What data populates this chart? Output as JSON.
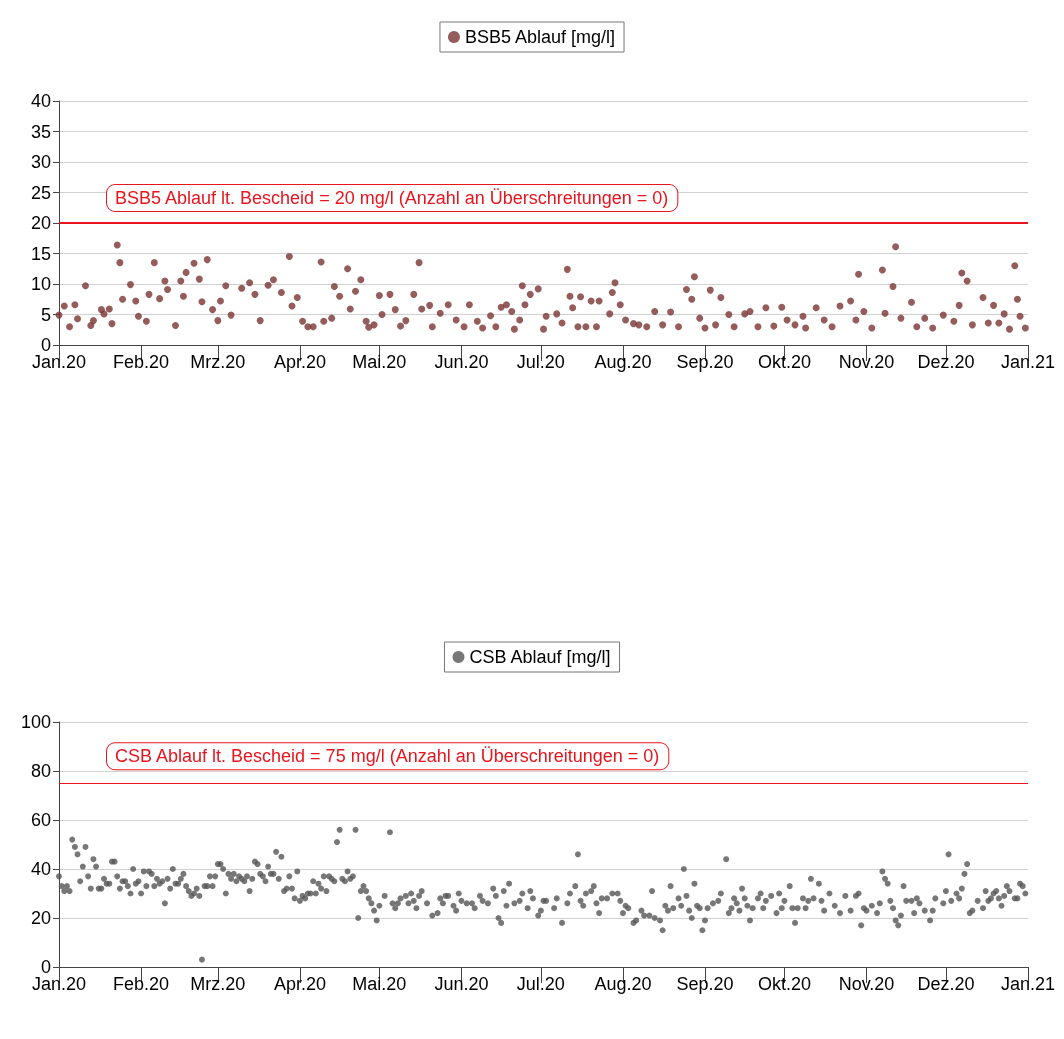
{
  "chart_data": [
    {
      "type": "scatter",
      "legend": "top",
      "grid": "y",
      "marker": "circle",
      "xlim": [
        "2020-01-01",
        "2021-01-01"
      ],
      "xticks": [
        {
          "value": "2020-01-01",
          "label": "Jan.20"
        },
        {
          "value": "2020-02-01",
          "label": "Feb.20"
        },
        {
          "value": "2020-03-01",
          "label": "Mrz.20"
        },
        {
          "value": "2020-04-01",
          "label": "Apr.20"
        },
        {
          "value": "2020-05-01",
          "label": "Mai.20"
        },
        {
          "value": "2020-06-01",
          "label": "Jun.20"
        },
        {
          "value": "2020-07-01",
          "label": "Jul.20"
        },
        {
          "value": "2020-08-01",
          "label": "Aug.20"
        },
        {
          "value": "2020-09-01",
          "label": "Sep.20"
        },
        {
          "value": "2020-10-01",
          "label": "Okt.20"
        },
        {
          "value": "2020-11-01",
          "label": "Nov.20"
        },
        {
          "value": "2020-12-01",
          "label": "Dez.20"
        },
        {
          "value": "2021-01-01",
          "label": "Jan.21"
        }
      ],
      "ylim": [
        0,
        40
      ],
      "yticks": [
        0,
        5,
        10,
        15,
        20,
        25,
        30,
        35,
        40
      ],
      "ref_lines": [
        {
          "axis": "y",
          "value": 20,
          "label": "BSB5 Ablauf lt. Bescheid = 20 mg/l (Anzahl an Überschreitungen = 0)",
          "color": "#e8141e"
        }
      ],
      "series": [
        {
          "name": "BSB5 Ablauf [mg/l]",
          "color": "#7a3333",
          "x": [
            "2020-01-01",
            "2020-01-03",
            "2020-01-05",
            "2020-01-07",
            "2020-01-08",
            "2020-01-11",
            "2020-01-13",
            "2020-01-14",
            "2020-01-17",
            "2020-01-18",
            "2020-01-20",
            "2020-01-21",
            "2020-01-23",
            "2020-01-24",
            "2020-01-25",
            "2020-01-28",
            "2020-01-30",
            "2020-01-31",
            "2020-02-03",
            "2020-02-04",
            "2020-02-06",
            "2020-02-08",
            "2020-02-10",
            "2020-02-11",
            "2020-02-14",
            "2020-02-16",
            "2020-02-17",
            "2020-02-18",
            "2020-02-21",
            "2020-02-23",
            "2020-02-24",
            "2020-02-26",
            "2020-02-28",
            "2020-03-01",
            "2020-03-02",
            "2020-03-04",
            "2020-03-06",
            "2020-03-10",
            "2020-03-13",
            "2020-03-15",
            "2020-03-17",
            "2020-03-20",
            "2020-03-22",
            "2020-03-25",
            "2020-03-28",
            "2020-03-29",
            "2020-03-31",
            "2020-04-02",
            "2020-04-04",
            "2020-04-06",
            "2020-04-09",
            "2020-04-10",
            "2020-04-13",
            "2020-04-14",
            "2020-04-16",
            "2020-04-19",
            "2020-04-20",
            "2020-04-22",
            "2020-04-24",
            "2020-04-26",
            "2020-04-27",
            "2020-04-29",
            "2020-05-01",
            "2020-05-02",
            "2020-05-05",
            "2020-05-07",
            "2020-05-09",
            "2020-05-11",
            "2020-05-14",
            "2020-05-16",
            "2020-05-17",
            "2020-05-20",
            "2020-05-21",
            "2020-05-24",
            "2020-05-27",
            "2020-05-30",
            "2020-06-02",
            "2020-06-04",
            "2020-06-07",
            "2020-06-09",
            "2020-06-12",
            "2020-06-14",
            "2020-06-16",
            "2020-06-18",
            "2020-06-20",
            "2020-06-21",
            "2020-06-23",
            "2020-06-24",
            "2020-06-25",
            "2020-06-27",
            "2020-06-30",
            "2020-07-02",
            "2020-07-03",
            "2020-07-07",
            "2020-07-09",
            "2020-07-11",
            "2020-07-12",
            "2020-07-13",
            "2020-07-15",
            "2020-07-16",
            "2020-07-18",
            "2020-07-20",
            "2020-07-22",
            "2020-07-23",
            "2020-07-27",
            "2020-07-28",
            "2020-07-29",
            "2020-07-31",
            "2020-08-02",
            "2020-08-05",
            "2020-08-07",
            "2020-08-10",
            "2020-08-13",
            "2020-08-16",
            "2020-08-19",
            "2020-08-22",
            "2020-08-25",
            "2020-08-27",
            "2020-08-28",
            "2020-08-30",
            "2020-09-01",
            "2020-09-03",
            "2020-09-05",
            "2020-09-07",
            "2020-09-10",
            "2020-09-12",
            "2020-09-16",
            "2020-09-18",
            "2020-09-21",
            "2020-09-24",
            "2020-09-27",
            "2020-09-30",
            "2020-10-02",
            "2020-10-05",
            "2020-10-08",
            "2020-10-09",
            "2020-10-13",
            "2020-10-16",
            "2020-10-19",
            "2020-10-22",
            "2020-10-26",
            "2020-10-28",
            "2020-10-29",
            "2020-10-31",
            "2020-11-03",
            "2020-11-07",
            "2020-11-08",
            "2020-11-11",
            "2020-11-12",
            "2020-11-14",
            "2020-11-18",
            "2020-11-20",
            "2020-11-23",
            "2020-11-26",
            "2020-11-30",
            "2020-12-04",
            "2020-12-06",
            "2020-12-07",
            "2020-12-09",
            "2020-12-11",
            "2020-12-15",
            "2020-12-17",
            "2020-12-19",
            "2020-12-21",
            "2020-12-23",
            "2020-12-25",
            "2020-12-27",
            "2020-12-28",
            "2020-12-29",
            "2020-12-31"
          ],
          "values": [
            4.9,
            6.4,
            3.0,
            6.6,
            4.3,
            9.7,
            3.2,
            4.0,
            5.8,
            5.1,
            5.9,
            3.5,
            16.4,
            13.5,
            7.5,
            9.9,
            7.2,
            4.7,
            3.9,
            8.3,
            13.5,
            7.6,
            10.5,
            9.1,
            3.2,
            10.5,
            8.0,
            11.9,
            13.4,
            10.8,
            7.1,
            14.0,
            5.8,
            4.0,
            7.2,
            9.7,
            4.9,
            9.3,
            10.2,
            8.3,
            4.0,
            9.8,
            10.7,
            8.6,
            14.5,
            6.4,
            7.8,
            3.9,
            3.0,
            3.0,
            13.6,
            3.9,
            4.4,
            9.6,
            8.0,
            12.5,
            5.9,
            8.8,
            10.7,
            3.9,
            2.9,
            3.3,
            8.1,
            5.0,
            8.3,
            5.8,
            3.1,
            4.0,
            8.3,
            13.5,
            5.9,
            6.5,
            3.0,
            5.2,
            6.6,
            4.1,
            3.0,
            6.6,
            3.9,
            2.8,
            4.8,
            3.0,
            6.2,
            6.6,
            5.5,
            2.6,
            4.1,
            9.7,
            6.6,
            8.3,
            9.2,
            2.6,
            4.7,
            5.1,
            3.6,
            12.4,
            8.0,
            6.1,
            3.0,
            7.9,
            3.0,
            7.2,
            3.0,
            7.2,
            5.1,
            8.6,
            10.2,
            6.6,
            4.1,
            3.5,
            3.3,
            3.0,
            5.5,
            3.3,
            5.4,
            3.0,
            9.1,
            7.5,
            11.2,
            4.4,
            2.8,
            9.0,
            3.3,
            7.8,
            5.0,
            3.0,
            5.1,
            5.5,
            3.0,
            6.1,
            3.1,
            6.2,
            4.1,
            3.3,
            4.7,
            2.8,
            6.1,
            4.1,
            3.0,
            6.4,
            7.2,
            4.1,
            11.6,
            5.5,
            2.8,
            12.3,
            5.2,
            9.6,
            16.1,
            4.4,
            7.0,
            3.0,
            4.4,
            2.8,
            4.9,
            3.9,
            6.5,
            11.8,
            10.5,
            3.3,
            7.8,
            3.6,
            6.5,
            3.6,
            5.1,
            2.6,
            13.0,
            7.5,
            4.7,
            2.8
          ]
        }
      ]
    },
    {
      "type": "scatter",
      "legend": "top",
      "grid": "y",
      "marker": "circle",
      "xlim": [
        "2020-01-01",
        "2021-01-01"
      ],
      "xticks": [
        {
          "value": "2020-01-01",
          "label": "Jan.20"
        },
        {
          "value": "2020-02-01",
          "label": "Feb.20"
        },
        {
          "value": "2020-03-01",
          "label": "Mrz.20"
        },
        {
          "value": "2020-04-01",
          "label": "Apr.20"
        },
        {
          "value": "2020-05-01",
          "label": "Mai.20"
        },
        {
          "value": "2020-06-01",
          "label": "Jun.20"
        },
        {
          "value": "2020-07-01",
          "label": "Jul.20"
        },
        {
          "value": "2020-08-01",
          "label": "Aug.20"
        },
        {
          "value": "2020-09-01",
          "label": "Sep.20"
        },
        {
          "value": "2020-10-01",
          "label": "Okt.20"
        },
        {
          "value": "2020-11-01",
          "label": "Nov.20"
        },
        {
          "value": "2020-12-01",
          "label": "Dez.20"
        },
        {
          "value": "2021-01-01",
          "label": "Jan.21"
        }
      ],
      "ylim": [
        0,
        100
      ],
      "yticks": [
        0,
        20,
        40,
        60,
        80,
        100
      ],
      "ref_lines": [
        {
          "axis": "y",
          "value": 75,
          "label": "CSB Ablauf lt. Bescheid = 75 mg/l (Anzahl an Überschreitungen = 0)",
          "color": "#e8141e"
        }
      ],
      "series": [
        {
          "name": "CSB Ablauf [mg/l]",
          "color": "#555555",
          "x": [
            "2020-01-01",
            "2020-01-02",
            "2020-01-03",
            "2020-01-04",
            "2020-01-05",
            "2020-01-06",
            "2020-01-07",
            "2020-01-08",
            "2020-01-09",
            "2020-01-10",
            "2020-01-11",
            "2020-01-12",
            "2020-01-13",
            "2020-01-14",
            "2020-01-15",
            "2020-01-16",
            "2020-01-17",
            "2020-01-18",
            "2020-01-19",
            "2020-01-20",
            "2020-01-21",
            "2020-01-22",
            "2020-01-23",
            "2020-01-24",
            "2020-01-25",
            "2020-01-26",
            "2020-01-27",
            "2020-01-28",
            "2020-01-29",
            "2020-01-30",
            "2020-01-31",
            "2020-02-01",
            "2020-02-02",
            "2020-02-03",
            "2020-02-04",
            "2020-02-05",
            "2020-02-06",
            "2020-02-07",
            "2020-02-08",
            "2020-02-09",
            "2020-02-10",
            "2020-02-11",
            "2020-02-12",
            "2020-02-13",
            "2020-02-14",
            "2020-02-15",
            "2020-02-16",
            "2020-02-17",
            "2020-02-18",
            "2020-02-19",
            "2020-02-20",
            "2020-02-21",
            "2020-02-22",
            "2020-02-23",
            "2020-02-24",
            "2020-02-25",
            "2020-02-26",
            "2020-02-27",
            "2020-02-28",
            "2020-02-29",
            "2020-03-01",
            "2020-03-02",
            "2020-03-03",
            "2020-03-04",
            "2020-03-05",
            "2020-03-06",
            "2020-03-07",
            "2020-03-08",
            "2020-03-09",
            "2020-03-10",
            "2020-03-11",
            "2020-03-12",
            "2020-03-13",
            "2020-03-14",
            "2020-03-15",
            "2020-03-16",
            "2020-03-17",
            "2020-03-18",
            "2020-03-19",
            "2020-03-20",
            "2020-03-21",
            "2020-03-22",
            "2020-03-23",
            "2020-03-24",
            "2020-03-25",
            "2020-03-26",
            "2020-03-27",
            "2020-03-28",
            "2020-03-29",
            "2020-03-30",
            "2020-03-31",
            "2020-04-01",
            "2020-04-02",
            "2020-04-03",
            "2020-04-04",
            "2020-04-05",
            "2020-04-06",
            "2020-04-07",
            "2020-04-08",
            "2020-04-09",
            "2020-04-10",
            "2020-04-11",
            "2020-04-12",
            "2020-04-13",
            "2020-04-14",
            "2020-04-15",
            "2020-04-16",
            "2020-04-17",
            "2020-04-18",
            "2020-04-19",
            "2020-04-20",
            "2020-04-21",
            "2020-04-22",
            "2020-04-23",
            "2020-04-24",
            "2020-04-25",
            "2020-04-26",
            "2020-04-27",
            "2020-04-28",
            "2020-04-29",
            "2020-04-30",
            "2020-05-01",
            "2020-05-03",
            "2020-05-05",
            "2020-05-06",
            "2020-05-07",
            "2020-05-08",
            "2020-05-09",
            "2020-05-11",
            "2020-05-12",
            "2020-05-13",
            "2020-05-14",
            "2020-05-15",
            "2020-05-16",
            "2020-05-17",
            "2020-05-19",
            "2020-05-21",
            "2020-05-23",
            "2020-05-24",
            "2020-05-25",
            "2020-05-26",
            "2020-05-27",
            "2020-05-29",
            "2020-05-30",
            "2020-05-31",
            "2020-06-01",
            "2020-06-03",
            "2020-06-05",
            "2020-06-06",
            "2020-06-08",
            "2020-06-09",
            "2020-06-11",
            "2020-06-13",
            "2020-06-14",
            "2020-06-15",
            "2020-06-16",
            "2020-06-17",
            "2020-06-18",
            "2020-06-19",
            "2020-06-21",
            "2020-06-23",
            "2020-06-24",
            "2020-06-26",
            "2020-06-27",
            "2020-06-28",
            "2020-06-30",
            "2020-07-01",
            "2020-07-02",
            "2020-07-03",
            "2020-07-06",
            "2020-07-07",
            "2020-07-09",
            "2020-07-11",
            "2020-07-12",
            "2020-07-14",
            "2020-07-15",
            "2020-07-16",
            "2020-07-17",
            "2020-07-18",
            "2020-07-20",
            "2020-07-21",
            "2020-07-22",
            "2020-07-23",
            "2020-07-24",
            "2020-07-26",
            "2020-07-28",
            "2020-07-30",
            "2020-07-31",
            "2020-08-01",
            "2020-08-02",
            "2020-08-03",
            "2020-08-05",
            "2020-08-06",
            "2020-08-08",
            "2020-08-09",
            "2020-08-11",
            "2020-08-12",
            "2020-08-13",
            "2020-08-15",
            "2020-08-16",
            "2020-08-17",
            "2020-08-18",
            "2020-08-19",
            "2020-08-20",
            "2020-08-22",
            "2020-08-23",
            "2020-08-24",
            "2020-08-25",
            "2020-08-26",
            "2020-08-27",
            "2020-08-28",
            "2020-08-29",
            "2020-08-30",
            "2020-08-31",
            "2020-09-01",
            "2020-09-02",
            "2020-09-04",
            "2020-09-06",
            "2020-09-07",
            "2020-09-09",
            "2020-09-10",
            "2020-09-11",
            "2020-09-12",
            "2020-09-13",
            "2020-09-14",
            "2020-09-15",
            "2020-09-16",
            "2020-09-17",
            "2020-09-18",
            "2020-09-19",
            "2020-09-21",
            "2020-09-22",
            "2020-09-23",
            "2020-09-24",
            "2020-09-26",
            "2020-09-28",
            "2020-09-29",
            "2020-09-30",
            "2020-10-01",
            "2020-10-03",
            "2020-10-04",
            "2020-10-05",
            "2020-10-06",
            "2020-10-08",
            "2020-10-09",
            "2020-10-10",
            "2020-10-11",
            "2020-10-12",
            "2020-10-14",
            "2020-10-15",
            "2020-10-16",
            "2020-10-18",
            "2020-10-20",
            "2020-10-22",
            "2020-10-24",
            "2020-10-26",
            "2020-10-28",
            "2020-10-29",
            "2020-10-30",
            "2020-10-31",
            "2020-11-01",
            "2020-11-03",
            "2020-11-05",
            "2020-11-06",
            "2020-11-07",
            "2020-11-08",
            "2020-11-09",
            "2020-11-10",
            "2020-11-11",
            "2020-11-12",
            "2020-11-13",
            "2020-11-14",
            "2020-11-15",
            "2020-11-16",
            "2020-11-18",
            "2020-11-19",
            "2020-11-20",
            "2020-11-21",
            "2020-11-23",
            "2020-11-25",
            "2020-11-26",
            "2020-11-27",
            "2020-11-30",
            "2020-12-01",
            "2020-12-02",
            "2020-12-03",
            "2020-12-05",
            "2020-12-06",
            "2020-12-07",
            "2020-12-08",
            "2020-12-09",
            "2020-12-10",
            "2020-12-11",
            "2020-12-13",
            "2020-12-15",
            "2020-12-16",
            "2020-12-17",
            "2020-12-18",
            "2020-12-19",
            "2020-12-20",
            "2020-12-21",
            "2020-12-22",
            "2020-12-23",
            "2020-12-24",
            "2020-12-25",
            "2020-12-27",
            "2020-12-28",
            "2020-12-29",
            "2020-12-30",
            "2020-12-31"
          ],
          "values": [
            37,
            33,
            31,
            33,
            31,
            52,
            49,
            46,
            35,
            41,
            49,
            37,
            32,
            44,
            41,
            32,
            32,
            36,
            34,
            34,
            43,
            43,
            37,
            32,
            35,
            35,
            33,
            30,
            40,
            34,
            35,
            30,
            39,
            33,
            39,
            38,
            33,
            36,
            34,
            35,
            26,
            36,
            32,
            40,
            34,
            34,
            36,
            38,
            33,
            31,
            29,
            30,
            32,
            29,
            3,
            33,
            33,
            37,
            33,
            37,
            42,
            42,
            40,
            30,
            38,
            36,
            38,
            35,
            37,
            36,
            35,
            37,
            31,
            36,
            43,
            42,
            38,
            37,
            35,
            41,
            38,
            38,
            47,
            36,
            45,
            31,
            32,
            37,
            32,
            28,
            39,
            27,
            29,
            28,
            30,
            30,
            35,
            30,
            34,
            32,
            37,
            31,
            37,
            36,
            35,
            51,
            56,
            36,
            35,
            39,
            36,
            37,
            56,
            20,
            31,
            33,
            31,
            28,
            26,
            23,
            19,
            25,
            29,
            55,
            26,
            24,
            26,
            28,
            29,
            26,
            30,
            27,
            24,
            29,
            31,
            26,
            21,
            22,
            28,
            26,
            29,
            29,
            25,
            23,
            30,
            27,
            26,
            26,
            24,
            29,
            27,
            26,
            32,
            29,
            20,
            18,
            31,
            25,
            34,
            26,
            27,
            30,
            24,
            31,
            28,
            21,
            23,
            27,
            27,
            24,
            28,
            18,
            26,
            30,
            33,
            46,
            27,
            25,
            30,
            31,
            33,
            26,
            22,
            28,
            28,
            30,
            30,
            27,
            22,
            25,
            24,
            18,
            19,
            23,
            21,
            21,
            31,
            20,
            19,
            15,
            25,
            23,
            33,
            24,
            28,
            25,
            40,
            29,
            23,
            20,
            34,
            25,
            24,
            15,
            19,
            24,
            26,
            27,
            30,
            44,
            22,
            24,
            28,
            26,
            23,
            32,
            28,
            25,
            19,
            24,
            28,
            30,
            24,
            27,
            29,
            22,
            30,
            24,
            27,
            33,
            24,
            18,
            24,
            28,
            24,
            27,
            36,
            28,
            34,
            27,
            23,
            30,
            25,
            22,
            29,
            23,
            29,
            30,
            17,
            24,
            23,
            25,
            22,
            26,
            39,
            36,
            34,
            27,
            24,
            19,
            17,
            21,
            33,
            27,
            27,
            22,
            28,
            26,
            23,
            19,
            23,
            28,
            26,
            31,
            46,
            27,
            30,
            28,
            32,
            38,
            42,
            22,
            23,
            27,
            24,
            31,
            27,
            28,
            30,
            31,
            28,
            25,
            29,
            33,
            31,
            28,
            28,
            34,
            33,
            30
          ]
        }
      ]
    }
  ]
}
